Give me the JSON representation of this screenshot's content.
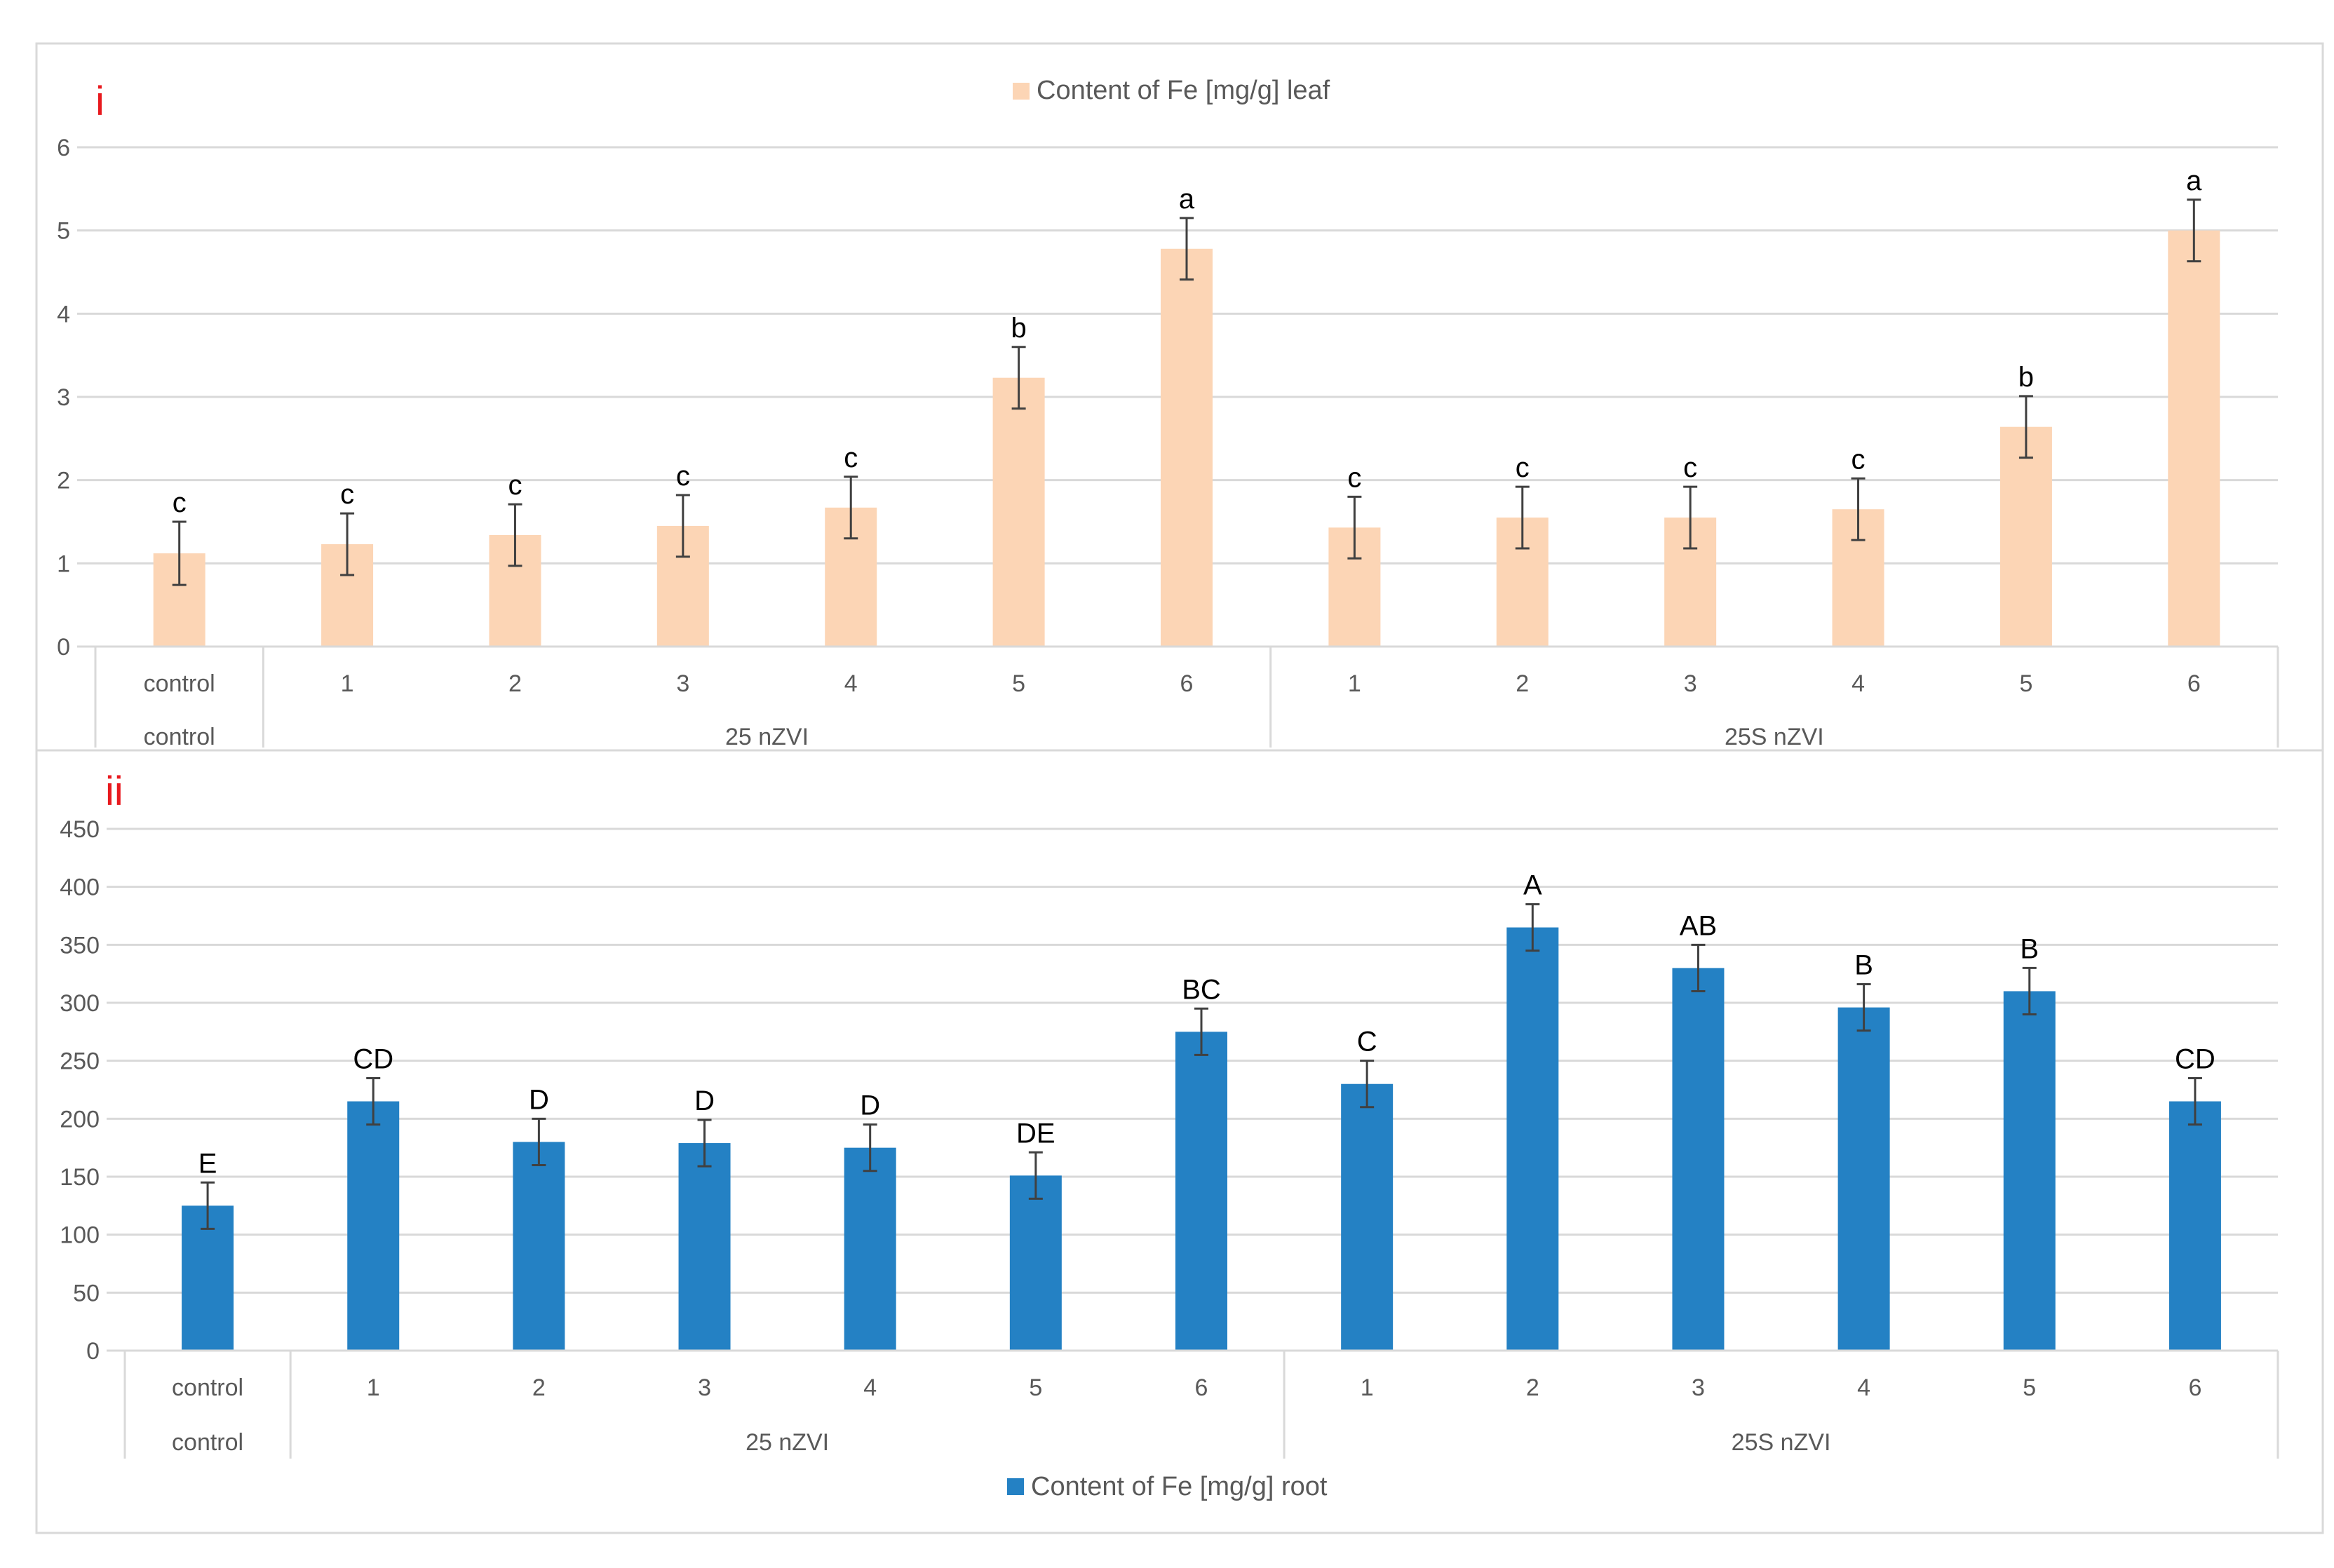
{
  "chart_data": [
    {
      "type": "bar",
      "panel_label": "i",
      "legend": "Content of Fe [mg/g] leaf",
      "legend_position": "top-center",
      "categories": [
        "control",
        "1",
        "2",
        "3",
        "4",
        "5",
        "6",
        "1",
        "2",
        "3",
        "4",
        "5",
        "6"
      ],
      "groups": [
        {
          "label": "control",
          "count": 1
        },
        {
          "label": "25 nZVI",
          "count": 6
        },
        {
          "label": "25S nZVI",
          "count": 6
        }
      ],
      "values": [
        1.12,
        1.23,
        1.34,
        1.45,
        1.67,
        3.23,
        4.78,
        1.43,
        1.55,
        1.55,
        1.65,
        2.64,
        5.0
      ],
      "errors": [
        0.38,
        0.37,
        0.37,
        0.37,
        0.37,
        0.37,
        0.37,
        0.37,
        0.37,
        0.37,
        0.37,
        0.37,
        0.37
      ],
      "significance": [
        "c",
        "c",
        "c",
        "c",
        "c",
        "b",
        "a",
        "c",
        "c",
        "c",
        "c",
        "b",
        "a"
      ],
      "ylim": [
        0,
        6
      ],
      "yticks": [
        "0",
        "1",
        "2",
        "3",
        "4",
        "5",
        "6"
      ],
      "grid": true,
      "color": "#FCD5B5"
    },
    {
      "type": "bar",
      "panel_label": "ii",
      "legend": "Content of Fe [mg/g] root",
      "legend_position": "bottom-center",
      "categories": [
        "control",
        "1",
        "2",
        "3",
        "4",
        "5",
        "6",
        "1",
        "2",
        "3",
        "4",
        "5",
        "6"
      ],
      "groups": [
        {
          "label": "control",
          "count": 1
        },
        {
          "label": "25 nZVI",
          "count": 6
        },
        {
          "label": "25S nZVI",
          "count": 6
        }
      ],
      "values": [
        125,
        215,
        180,
        179,
        175,
        151,
        275,
        230,
        365,
        330,
        296,
        310,
        215
      ],
      "errors": [
        20,
        20,
        20,
        20,
        20,
        20,
        20,
        20,
        20,
        20,
        20,
        20,
        20
      ],
      "significance": [
        "E",
        "CD",
        "D",
        "D",
        "D",
        "DE",
        "BC",
        "C",
        "A",
        "AB",
        "B",
        "B",
        "CD"
      ],
      "ylim": [
        0,
        450
      ],
      "yticks": [
        "0",
        "50",
        "100",
        "150",
        "200",
        "250",
        "300",
        "350",
        "400",
        "450"
      ],
      "grid": true,
      "color": "#2481C4"
    }
  ]
}
